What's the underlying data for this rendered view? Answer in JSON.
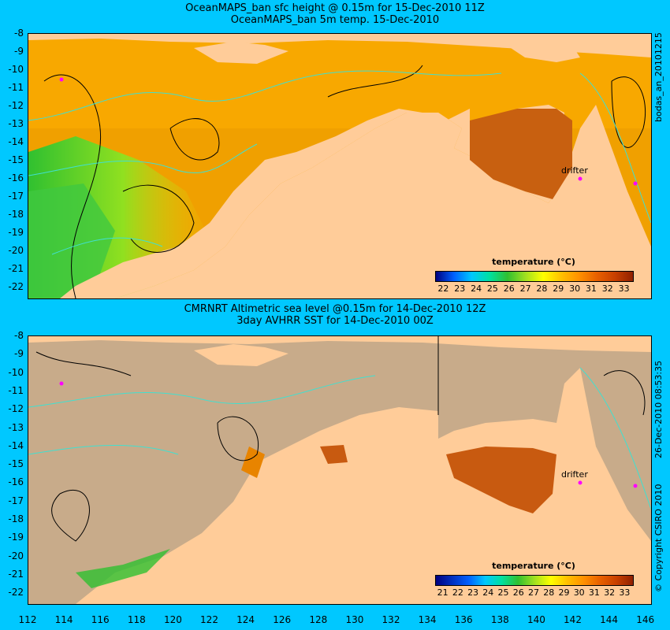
{
  "top": {
    "title_line1": "OceanMAPS_ban sfc height @ 0.15m for 15-Dec-2010 11Z",
    "title_line2": "OceanMAPS_ban 5m temp. 15-Dec-2010",
    "side_label": "bodas_an_20101215",
    "colorbar_title": "temperature (°C)",
    "colorbar_ticks": [
      "22",
      "23",
      "24",
      "25",
      "26",
      "27",
      "28",
      "29",
      "30",
      "31",
      "32",
      "33"
    ],
    "drifter_label": "drifter"
  },
  "bottom": {
    "title_line1": "CMRNRT Altimetric sea level  @0.15m  for 14-Dec-2010 12Z",
    "title_line2": "3day AVHRR SST for 14-Dec-2010 00Z",
    "side_label": "26-Dec-2010 08:53:35",
    "copyright": "© Copyright CSIRO 2010",
    "colorbar_title": "temperature (°C)",
    "colorbar_ticks": [
      "21",
      "22",
      "23",
      "24",
      "25",
      "26",
      "27",
      "28",
      "29",
      "30",
      "31",
      "32",
      "33"
    ],
    "drifter_label": "drifter"
  },
  "y_ticks": [
    "-8",
    "-9",
    "-10",
    "-11",
    "-12",
    "-13",
    "-14",
    "-15",
    "-16",
    "-17",
    "-18",
    "-19",
    "-20",
    "-21",
    "-22"
  ],
  "x_ticks": [
    "112",
    "114",
    "116",
    "118",
    "120",
    "122",
    "124",
    "126",
    "128",
    "130",
    "132",
    "134",
    "136",
    "138",
    "140",
    "142",
    "144",
    "146"
  ],
  "colors": {
    "background": "#00c8ff",
    "land": "#ffcc99",
    "no_data": "#c8ab8a",
    "contour_cyan": "#40e0d0",
    "drifter_marker": "#ff00ff"
  }
}
